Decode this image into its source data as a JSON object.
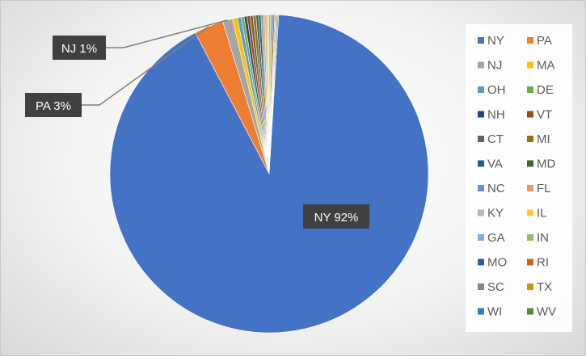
{
  "chart_data": {
    "type": "pie",
    "categories": [
      "NY",
      "PA",
      "NJ",
      "MA",
      "OH",
      "DE",
      "NH",
      "VT",
      "CT",
      "MI",
      "VA",
      "MD",
      "NC",
      "FL",
      "KY",
      "IL",
      "GA",
      "IN",
      "MO",
      "RI",
      "SC",
      "TX",
      "WI",
      "WV"
    ],
    "values": [
      92,
      3,
      1,
      0.5,
      0.4,
      0.3,
      0.3,
      0.3,
      0.3,
      0.3,
      0.25,
      0.25,
      0.2,
      0.2,
      0.2,
      0.2,
      0.15,
      0.15,
      0.15,
      0.15,
      0.1,
      0.1,
      0.1,
      0.1
    ],
    "colors": [
      "#4472C4",
      "#ED7D31",
      "#A5A5A5",
      "#FFC000",
      "#5B9BD5",
      "#70AD47",
      "#264478",
      "#9E480E",
      "#636363",
      "#997300",
      "#255E91",
      "#43682B",
      "#698ED0",
      "#F1975A",
      "#B7B7B7",
      "#FFCD33",
      "#7CAFDD",
      "#8CC168",
      "#335AA1",
      "#D26012",
      "#848484",
      "#CC9A00",
      "#327DC2",
      "#5A8A39"
    ],
    "data_labels": [
      {
        "category": "NY",
        "text": "NY 92%"
      },
      {
        "category": "PA",
        "text": "PA 3%"
      },
      {
        "category": "NJ",
        "text": "NJ 1%"
      }
    ],
    "legend": {
      "position": "right",
      "columns": 2
    },
    "title": ""
  }
}
